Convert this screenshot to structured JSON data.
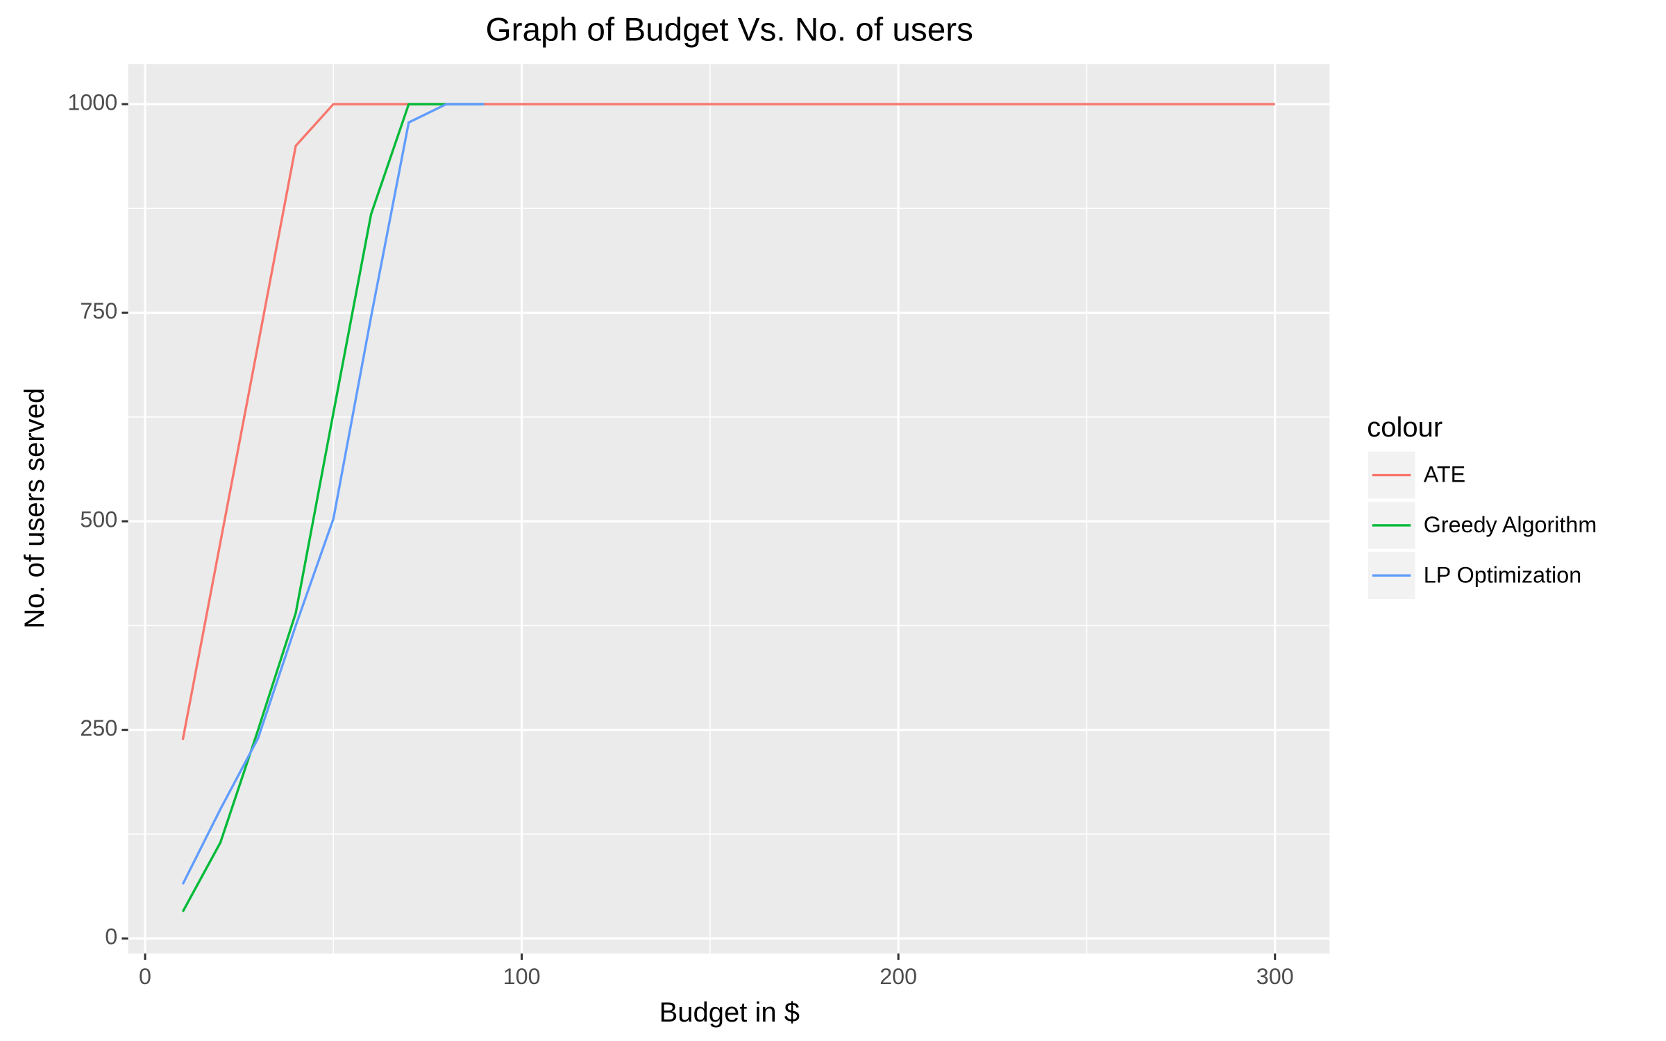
{
  "chart_data": {
    "type": "line",
    "title": "Graph of Budget Vs. No. of users",
    "x_label": "Budget in $",
    "y_label": "No. of users served",
    "legend_title": "colour",
    "legend_position": "right",
    "grid": true,
    "xlim": [
      -4.5,
      314.5
    ],
    "ylim": [
      -18,
      1048
    ],
    "xticks": [
      0,
      100,
      200,
      300
    ],
    "yticks": [
      0,
      250,
      500,
      750,
      1000
    ],
    "xminorticks": [
      50,
      150,
      250
    ],
    "yminorticks": [
      125,
      375,
      625,
      875
    ],
    "series": [
      {
        "name": "ATE",
        "color": "#f8766d",
        "x": [
          10,
          20,
          30,
          40,
          50,
          60,
          70,
          80,
          90,
          100,
          150,
          200,
          250,
          300
        ],
        "values": [
          238,
          475,
          712,
          950,
          1000,
          1000,
          1000,
          1000,
          1000,
          1000,
          1000,
          1000,
          1000,
          1000
        ]
      },
      {
        "name": "Greedy Algorithm",
        "color": "#00ba38",
        "x": [
          10,
          20,
          30,
          40,
          50,
          60,
          70,
          80,
          90
        ],
        "values": [
          32,
          115,
          250,
          390,
          630,
          868,
          1000,
          1000,
          1000
        ]
      },
      {
        "name": "LP Optimization",
        "color": "#619cff",
        "x": [
          10,
          20,
          30,
          40,
          50,
          60,
          70,
          80,
          90
        ],
        "values": [
          65,
          155,
          240,
          375,
          503,
          745,
          978,
          1000,
          1000
        ]
      }
    ]
  }
}
